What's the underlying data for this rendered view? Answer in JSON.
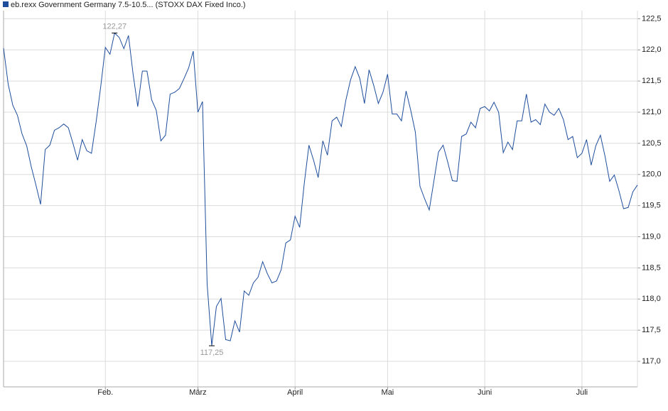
{
  "chart_data": {
    "type": "line",
    "legend_position": "top-left",
    "grid": true,
    "categories": [
      null,
      null,
      null,
      null,
      null,
      null,
      null,
      null,
      null,
      null,
      null,
      null,
      null,
      null,
      null,
      null,
      null,
      null,
      null,
      null,
      null,
      null,
      "Feb.",
      null,
      null,
      null,
      null,
      null,
      null,
      null,
      null,
      null,
      null,
      null,
      null,
      null,
      null,
      null,
      null,
      null,
      null,
      null,
      "März",
      null,
      null,
      null,
      null,
      null,
      null,
      null,
      null,
      null,
      null,
      null,
      null,
      null,
      null,
      null,
      null,
      null,
      null,
      null,
      null,
      "April",
      null,
      null,
      null,
      null,
      null,
      null,
      null,
      null,
      null,
      null,
      null,
      null,
      null,
      null,
      null,
      null,
      null,
      null,
      null,
      "Mai",
      null,
      null,
      null,
      null,
      null,
      null,
      null,
      null,
      null,
      null,
      null,
      null,
      null,
      null,
      null,
      null,
      null,
      null,
      null,
      null,
      "Juni",
      null,
      null,
      null,
      null,
      null,
      null,
      null,
      null,
      null,
      null,
      null,
      null,
      null,
      null,
      null,
      null,
      null,
      null,
      null,
      null,
      "Juli",
      null,
      null,
      null,
      null,
      null,
      null,
      null,
      null,
      null,
      null,
      null,
      null
    ],
    "series": [
      {
        "name": "eb.rexx Government Germany 7.5-10.5... (STOXX DAX Fixed Inco.)",
        "color": "#1f4e9c",
        "values": [
          122.03,
          121.45,
          121.11,
          120.95,
          120.65,
          120.46,
          120.12,
          119.83,
          119.52,
          120.4,
          120.47,
          120.71,
          120.75,
          120.81,
          120.75,
          120.5,
          120.23,
          120.56,
          120.38,
          120.34,
          120.84,
          121.41,
          122.04,
          121.93,
          122.27,
          122.2,
          122.02,
          122.23,
          121.61,
          121.09,
          121.66,
          121.66,
          121.2,
          121.03,
          120.54,
          120.63,
          121.29,
          121.32,
          121.38,
          121.54,
          121.71,
          121.98,
          121.0,
          121.17,
          118.24,
          117.25,
          117.88,
          118.01,
          117.35,
          117.33,
          117.65,
          117.47,
          118.13,
          118.06,
          118.26,
          118.35,
          118.6,
          118.41,
          118.26,
          118.29,
          118.47,
          118.9,
          118.95,
          119.33,
          119.15,
          119.86,
          120.47,
          120.23,
          119.95,
          120.54,
          120.31,
          120.86,
          120.92,
          120.77,
          121.2,
          121.52,
          121.73,
          121.54,
          121.14,
          121.68,
          121.43,
          121.14,
          121.32,
          121.61,
          120.97,
          120.97,
          120.86,
          121.34,
          121.03,
          120.68,
          119.81,
          119.61,
          119.43,
          119.89,
          120.36,
          120.47,
          120.2,
          119.9,
          119.89,
          120.61,
          120.65,
          120.84,
          120.75,
          121.06,
          121.09,
          121.02,
          121.16,
          121.0,
          120.35,
          120.52,
          120.4,
          120.86,
          120.86,
          121.29,
          120.84,
          120.88,
          120.8,
          121.13,
          121.0,
          120.95,
          121.06,
          120.88,
          120.56,
          120.61,
          120.27,
          120.34,
          120.56,
          120.15,
          120.46,
          120.63,
          120.29,
          119.89,
          119.99,
          119.74,
          119.45,
          119.47,
          119.72,
          119.83
        ],
        "value_labels": [
          null,
          null,
          null,
          null,
          null,
          null,
          null,
          null,
          null,
          null,
          null,
          null,
          null,
          null,
          null,
          null,
          null,
          null,
          null,
          null,
          null,
          null,
          null,
          null,
          "122,27",
          null,
          null,
          null,
          null,
          null,
          null,
          null,
          null,
          null,
          null,
          null,
          null,
          null,
          null,
          null,
          null,
          null,
          null,
          null,
          null,
          "117,25",
          null,
          null,
          null,
          null,
          null,
          null,
          null,
          null,
          null,
          null,
          null,
          null,
          null,
          null,
          null,
          null,
          null,
          null,
          null,
          null,
          null,
          null,
          null,
          null,
          null,
          null,
          null,
          null,
          null,
          null,
          null,
          null,
          null,
          null,
          null,
          null,
          null,
          null,
          null,
          null,
          null,
          null,
          null,
          null,
          null,
          null,
          null,
          null,
          null,
          null,
          null,
          null,
          null,
          null,
          null,
          null,
          null,
          null,
          null,
          null,
          null,
          null,
          null,
          null,
          null,
          null,
          null,
          null,
          null,
          null,
          null,
          null,
          null,
          null,
          null,
          null,
          null,
          null,
          null,
          null,
          null,
          null,
          null,
          null,
          null,
          null,
          null,
          null,
          null,
          null,
          null,
          null
        ]
      }
    ],
    "ylim": [
      116.59,
      122.63
    ],
    "yticks": [
      {
        "value": 117,
        "label": "117,0"
      },
      {
        "value": 117.5,
        "label": "117,5"
      },
      {
        "value": 118,
        "label": "118,0"
      },
      {
        "value": 118.5,
        "label": "118,5"
      },
      {
        "value": 119,
        "label": "119,0"
      },
      {
        "value": 119.5,
        "label": "119,5"
      },
      {
        "value": 120,
        "label": "120,0"
      },
      {
        "value": 120.5,
        "label": "120,5"
      },
      {
        "value": 121,
        "label": "121,0"
      },
      {
        "value": 121.5,
        "label": "121,5"
      },
      {
        "value": 122,
        "label": "122,0"
      },
      {
        "value": 122.5,
        "label": "122,5"
      }
    ]
  }
}
